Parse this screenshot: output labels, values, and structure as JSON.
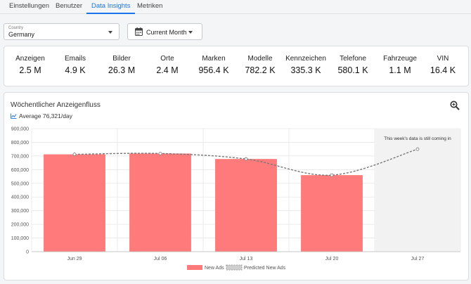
{
  "tabs": [
    {
      "label": "Einstellungen",
      "active": false
    },
    {
      "label": "Benutzer",
      "active": false
    },
    {
      "label": "Data Insights",
      "active": true
    },
    {
      "label": "Metriken",
      "active": false
    }
  ],
  "filters": {
    "country_label": "Country",
    "country_value": "Germany",
    "period_value": "Current Month"
  },
  "stats": [
    {
      "label": "Anzeigen",
      "value": "2.5 M"
    },
    {
      "label": "Emails",
      "value": "4.9 K"
    },
    {
      "label": "Bilder",
      "value": "26.3 M"
    },
    {
      "label": "Orte",
      "value": "2.4 M"
    },
    {
      "label": "Marken",
      "value": "956.4 K"
    },
    {
      "label": "Modelle",
      "value": "782.2 K"
    },
    {
      "label": "Kennzeichen",
      "value": "335.3 K"
    },
    {
      "label": "Telefone",
      "value": "580.1 K"
    },
    {
      "label": "Fahrzeuge",
      "value": "1.1 M"
    },
    {
      "label": "VIN",
      "value": "16.4 K"
    }
  ],
  "card": {
    "title": "Wöchentlicher Anzeigenfluss",
    "average": "Average 76,321/day"
  },
  "colors": {
    "accent": "#1a73e8",
    "bar": "#ff7b7b",
    "predicted_line": "#777777",
    "partial_week_shade": "#f2f2f2"
  },
  "chart_data": {
    "type": "bar",
    "categories": [
      "Jun 29",
      "Jul 06",
      "Jul 13",
      "Jul 20",
      "Jul 27"
    ],
    "series": [
      {
        "name": "New Ads",
        "type": "bar",
        "values": [
          712000,
          718000,
          678000,
          560000,
          null
        ]
      },
      {
        "name": "Predicted New Ads",
        "type": "line",
        "style": "dashed",
        "values": [
          712000,
          718000,
          678000,
          560000,
          750000
        ]
      }
    ],
    "y_ticks": [
      0,
      100000,
      200000,
      300000,
      400000,
      500000,
      600000,
      700000,
      800000,
      900000
    ],
    "y_tick_labels": [
      "0",
      "100,000",
      "200,000",
      "300,000",
      "400,000",
      "500,000",
      "600,000",
      "700,000",
      "800,000",
      "900,000"
    ],
    "ylim": [
      0,
      900000
    ],
    "grid": true,
    "legend_position": "bottom",
    "annotation": "This week's data is still coming in",
    "partial_category": "Jul 27"
  }
}
